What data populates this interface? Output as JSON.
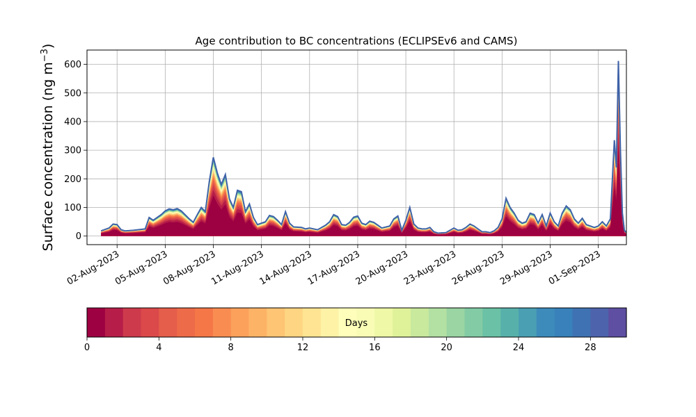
{
  "chart_data": {
    "type": "area",
    "title": "Age contribution to BC concentrations (ECLIPSEv6 and CAMS)",
    "ylabel": "Surface concentration (ng m⁻³)",
    "xlabel": "",
    "ylim": [
      -30,
      650
    ],
    "xlim": [
      "2023-07-31T03:00",
      "2023-09-02T18:00"
    ],
    "yticks": [
      0,
      100,
      200,
      300,
      400,
      500,
      600
    ],
    "xticks": [
      "2023-08-02",
      "2023-08-05",
      "2023-08-08",
      "2023-08-11",
      "2023-08-14",
      "2023-08-17",
      "2023-08-20",
      "2023-08-23",
      "2023-08-26",
      "2023-08-29",
      "2023-09-01"
    ],
    "xtick_labels": [
      "02-Aug-2023",
      "05-Aug-2023",
      "08-Aug-2023",
      "11-Aug-2023",
      "14-Aug-2023",
      "17-Aug-2023",
      "20-Aug-2023",
      "23-Aug-2023",
      "26-Aug-2023",
      "29-Aug-2023",
      "01-Sep-2023"
    ],
    "grid": true,
    "stacking": "cumulative by age (0 to 30 days)",
    "total_series": {
      "name": "",
      "points": [
        [
          "2023-08-01T00:00",
          18
        ],
        [
          "2023-08-01T12:00",
          28
        ],
        [
          "2023-08-01T18:00",
          42
        ],
        [
          "2023-08-02T00:00",
          40
        ],
        [
          "2023-08-02T06:00",
          22
        ],
        [
          "2023-08-02T12:00",
          18
        ],
        [
          "2023-08-03T00:00",
          20
        ],
        [
          "2023-08-03T18:00",
          25
        ],
        [
          "2023-08-04T00:00",
          65
        ],
        [
          "2023-08-04T06:00",
          55
        ],
        [
          "2023-08-04T18:00",
          75
        ],
        [
          "2023-08-05T00:00",
          88
        ],
        [
          "2023-08-05T06:00",
          95
        ],
        [
          "2023-08-05T12:00",
          92
        ],
        [
          "2023-08-05T18:00",
          96
        ],
        [
          "2023-08-06T00:00",
          88
        ],
        [
          "2023-08-06T12:00",
          60
        ],
        [
          "2023-08-06T18:00",
          48
        ],
        [
          "2023-08-07T00:00",
          75
        ],
        [
          "2023-08-07T06:00",
          100
        ],
        [
          "2023-08-07T12:00",
          85
        ],
        [
          "2023-08-07T18:00",
          190
        ],
        [
          "2023-08-08T00:00",
          275
        ],
        [
          "2023-08-08T06:00",
          220
        ],
        [
          "2023-08-08T12:00",
          180
        ],
        [
          "2023-08-08T18:00",
          215
        ],
        [
          "2023-08-09T00:00",
          130
        ],
        [
          "2023-08-09T06:00",
          100
        ],
        [
          "2023-08-09T12:00",
          160
        ],
        [
          "2023-08-09T18:00",
          155
        ],
        [
          "2023-08-10T00:00",
          85
        ],
        [
          "2023-08-10T06:00",
          112
        ],
        [
          "2023-08-10T12:00",
          65
        ],
        [
          "2023-08-10T18:00",
          40
        ],
        [
          "2023-08-11T00:00",
          45
        ],
        [
          "2023-08-11T06:00",
          50
        ],
        [
          "2023-08-11T12:00",
          72
        ],
        [
          "2023-08-11T18:00",
          68
        ],
        [
          "2023-08-12T00:00",
          55
        ],
        [
          "2023-08-12T06:00",
          40
        ],
        [
          "2023-08-12T12:00",
          85
        ],
        [
          "2023-08-12T18:00",
          45
        ],
        [
          "2023-08-13T00:00",
          32
        ],
        [
          "2023-08-13T12:00",
          30
        ],
        [
          "2023-08-13T18:00",
          25
        ],
        [
          "2023-08-14T00:00",
          28
        ],
        [
          "2023-08-14T12:00",
          22
        ],
        [
          "2023-08-15T00:00",
          38
        ],
        [
          "2023-08-15T06:00",
          50
        ],
        [
          "2023-08-15T12:00",
          75
        ],
        [
          "2023-08-15T18:00",
          68
        ],
        [
          "2023-08-16T00:00",
          40
        ],
        [
          "2023-08-16T06:00",
          38
        ],
        [
          "2023-08-16T12:00",
          48
        ],
        [
          "2023-08-16T18:00",
          66
        ],
        [
          "2023-08-17T00:00",
          70
        ],
        [
          "2023-08-17T06:00",
          45
        ],
        [
          "2023-08-17T12:00",
          40
        ],
        [
          "2023-08-17T18:00",
          52
        ],
        [
          "2023-08-18T00:00",
          48
        ],
        [
          "2023-08-18T06:00",
          38
        ],
        [
          "2023-08-18T12:00",
          28
        ],
        [
          "2023-08-19T00:00",
          35
        ],
        [
          "2023-08-19T06:00",
          60
        ],
        [
          "2023-08-19T12:00",
          70
        ],
        [
          "2023-08-19T18:00",
          20
        ],
        [
          "2023-08-20T00:00",
          55
        ],
        [
          "2023-08-20T06:00",
          100
        ],
        [
          "2023-08-20T12:00",
          42
        ],
        [
          "2023-08-20T18:00",
          28
        ],
        [
          "2023-08-21T00:00",
          25
        ],
        [
          "2023-08-21T06:00",
          25
        ],
        [
          "2023-08-21T12:00",
          30
        ],
        [
          "2023-08-21T18:00",
          15
        ],
        [
          "2023-08-22T00:00",
          10
        ],
        [
          "2023-08-22T12:00",
          12
        ],
        [
          "2023-08-23T00:00",
          28
        ],
        [
          "2023-08-23T06:00",
          20
        ],
        [
          "2023-08-23T12:00",
          22
        ],
        [
          "2023-08-23T18:00",
          30
        ],
        [
          "2023-08-24T00:00",
          42
        ],
        [
          "2023-08-24T06:00",
          35
        ],
        [
          "2023-08-24T12:00",
          25
        ],
        [
          "2023-08-24T18:00",
          15
        ],
        [
          "2023-08-25T00:00",
          15
        ],
        [
          "2023-08-25T06:00",
          12
        ],
        [
          "2023-08-25T12:00",
          18
        ],
        [
          "2023-08-25T18:00",
          30
        ],
        [
          "2023-08-26T00:00",
          60
        ],
        [
          "2023-08-26T06:00",
          132
        ],
        [
          "2023-08-26T12:00",
          100
        ],
        [
          "2023-08-26T18:00",
          80
        ],
        [
          "2023-08-27T00:00",
          55
        ],
        [
          "2023-08-27T06:00",
          45
        ],
        [
          "2023-08-27T12:00",
          50
        ],
        [
          "2023-08-27T18:00",
          80
        ],
        [
          "2023-08-28T00:00",
          75
        ],
        [
          "2023-08-28T06:00",
          45
        ],
        [
          "2023-08-28T12:00",
          75
        ],
        [
          "2023-08-28T18:00",
          35
        ],
        [
          "2023-08-29T00:00",
          80
        ],
        [
          "2023-08-29T06:00",
          50
        ],
        [
          "2023-08-29T12:00",
          35
        ],
        [
          "2023-08-29T18:00",
          80
        ],
        [
          "2023-08-30T00:00",
          105
        ],
        [
          "2023-08-30T06:00",
          92
        ],
        [
          "2023-08-30T12:00",
          60
        ],
        [
          "2023-08-30T18:00",
          45
        ],
        [
          "2023-08-31T00:00",
          62
        ],
        [
          "2023-08-31T06:00",
          40
        ],
        [
          "2023-08-31T12:00",
          35
        ],
        [
          "2023-08-31T18:00",
          30
        ],
        [
          "2023-09-01T00:00",
          35
        ],
        [
          "2023-09-01T06:00",
          50
        ],
        [
          "2023-09-01T12:00",
          35
        ],
        [
          "2023-09-01T18:00",
          60
        ],
        [
          "2023-09-02T00:00",
          335
        ],
        [
          "2023-09-02T03:00",
          240
        ],
        [
          "2023-09-02T06:00",
          612
        ],
        [
          "2023-09-02T09:00",
          300
        ],
        [
          "2023-09-02T12:00",
          80
        ],
        [
          "2023-09-02T15:00",
          20
        ],
        [
          "2023-09-02T18:00",
          12
        ]
      ]
    },
    "colorbar": {
      "label": "Days",
      "range": [
        0,
        30
      ],
      "ticks": [
        0,
        4,
        8,
        12,
        16,
        20,
        24,
        28
      ],
      "colors": [
        "#9e0142",
        "#b61d48",
        "#cd3a4c",
        "#db494a",
        "#e55d4b",
        "#ed6b49",
        "#f57748",
        "#f98c51",
        "#fba15c",
        "#fdb366",
        "#fdc574",
        "#fed582",
        "#fee493",
        "#fef2a6",
        "#fffeba",
        "#f8fcb5",
        "#eef8a6",
        "#dff299",
        "#c9e99d",
        "#b3e0a3",
        "#9ad5a3",
        "#83cba5",
        "#6bc1a5",
        "#57b1aa",
        "#4a9fb3",
        "#3d8bbb",
        "#3981ba",
        "#3f72b2",
        "#4d63ac",
        "#5e4fa2"
      ]
    }
  }
}
